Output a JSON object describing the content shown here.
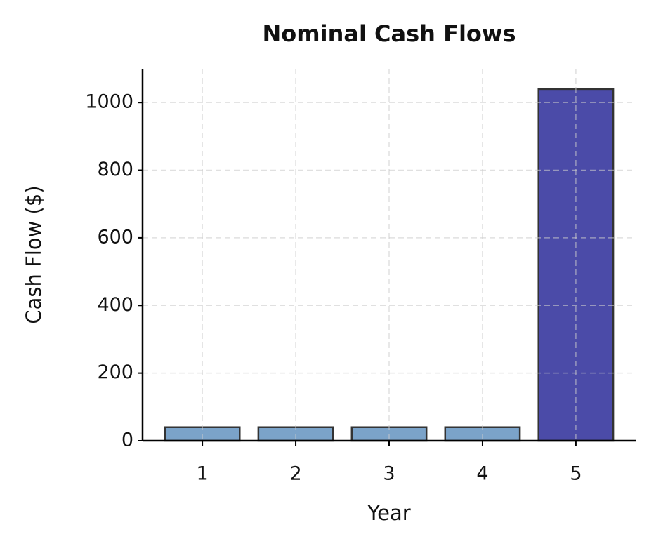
{
  "chart_data": {
    "type": "bar",
    "title": "Nominal Cash Flows",
    "x_label": "Year",
    "y_label": "Cash Flow ($)",
    "x": [
      1,
      2,
      3,
      4,
      5
    ],
    "values": [
      40,
      40,
      40,
      40,
      1040
    ],
    "colors": [
      "#7ba3c9",
      "#7ba3c9",
      "#7ba3c9",
      "#7ba3c9",
      "#4b4ba8"
    ],
    "edge_color": "#333333",
    "xlim": [
      0.36,
      5.64
    ],
    "xticks": [
      1,
      2,
      3,
      4,
      5
    ],
    "ylim": [
      0,
      1100
    ],
    "yticks": [
      0,
      200,
      400,
      600,
      800,
      1000
    ],
    "grid": true
  }
}
